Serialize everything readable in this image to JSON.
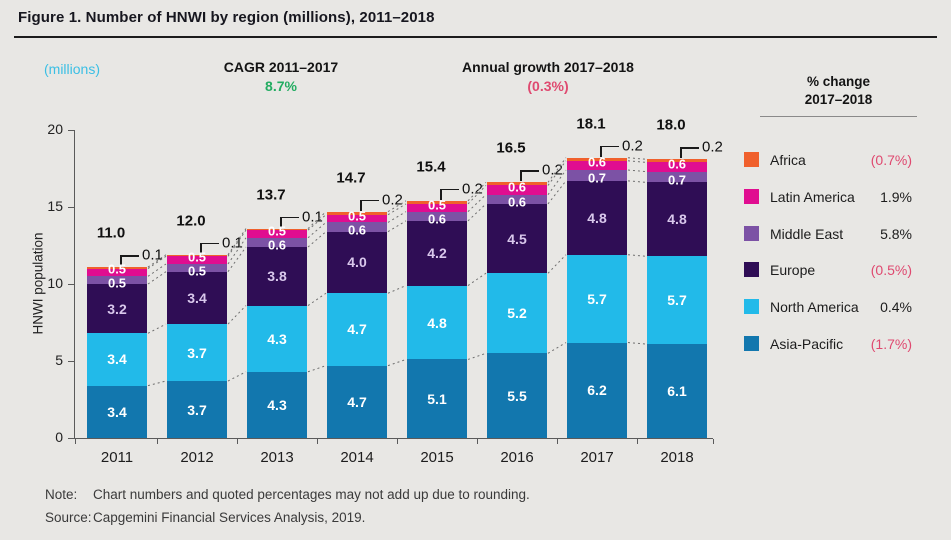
{
  "figure": {
    "title": "Figure 1. Number of HNWI by region (millions), 2011–2018",
    "unit_note": "(millions)",
    "cagr_label": "CAGR 2011–2017",
    "cagr_value": "8.7%",
    "annual_growth_label": "Annual growth 2017–2018",
    "annual_growth_value": "(0.3%)",
    "note_label": "Note:",
    "note_text": "Chart numbers and quoted percentages may not add up due to rounding.",
    "source_label": "Source:",
    "source_text": "Capgemini Financial Services Analysis, 2019."
  },
  "legend": {
    "header_line1": "% change",
    "header_line2": "2017–2018",
    "items": [
      {
        "label": "Africa",
        "value": "(0.7%)",
        "negative": true,
        "color": "#f0602c"
      },
      {
        "label": "Latin America",
        "value": "1.9%",
        "negative": false,
        "color": "#e00d90"
      },
      {
        "label": "Middle East",
        "value": "5.8%",
        "negative": false,
        "color": "#7c52a5"
      },
      {
        "label": "Europe",
        "value": "(0.5%)",
        "negative": true,
        "color": "#2f0d55"
      },
      {
        "label": "North America",
        "value": "0.4%",
        "negative": false,
        "color": "#22bae9"
      },
      {
        "label": "Asia-Pacific",
        "value": "(1.7%)",
        "negative": true,
        "color": "#1277ae"
      }
    ]
  },
  "chart_data": {
    "type": "bar",
    "stacked": true,
    "title": "Number of HNWI by region (millions), 2011–2018",
    "ylabel": "HNWI population",
    "xlabel": "",
    "ylim": [
      0,
      20
    ],
    "y_ticks": [
      0,
      5,
      10,
      15,
      20
    ],
    "grid": false,
    "legend_position": "right",
    "categories": [
      "2011",
      "2012",
      "2013",
      "2014",
      "2015",
      "2016",
      "2017",
      "2018"
    ],
    "series": [
      {
        "name": "Asia-Pacific",
        "color": "#1277ae",
        "label_color": "#ffffff",
        "values": [
          3.4,
          3.7,
          4.3,
          4.7,
          5.1,
          5.5,
          6.2,
          6.1
        ]
      },
      {
        "name": "North America",
        "color": "#22bae9",
        "label_color": "#ffffff",
        "values": [
          3.4,
          3.7,
          4.3,
          4.7,
          4.8,
          5.2,
          5.7,
          5.7
        ]
      },
      {
        "name": "Europe",
        "color": "#2f0d55",
        "label_color": "#d9c8ec",
        "values": [
          3.2,
          3.4,
          3.8,
          4.0,
          4.2,
          4.5,
          4.8,
          4.8
        ]
      },
      {
        "name": "Middle East",
        "color": "#7c52a5",
        "label_color": "#ffffff",
        "values": [
          0.5,
          0.5,
          0.6,
          0.6,
          0.6,
          0.6,
          0.7,
          0.7
        ]
      },
      {
        "name": "Latin America",
        "color": "#e00d90",
        "label_color": "#ffffff",
        "values": [
          0.5,
          0.5,
          0.5,
          0.5,
          0.5,
          0.6,
          0.6,
          0.6
        ]
      },
      {
        "name": "Africa",
        "color": "#f0602c",
        "label_color": "#101010",
        "values": [
          0.1,
          0.1,
          0.1,
          0.2,
          0.2,
          0.2,
          0.2,
          0.2
        ]
      }
    ],
    "totals": [
      "11.0",
      "12.0",
      "13.7",
      "14.7",
      "15.4",
      "16.5",
      "18.1",
      "18.0"
    ],
    "callout_series": "Africa"
  }
}
